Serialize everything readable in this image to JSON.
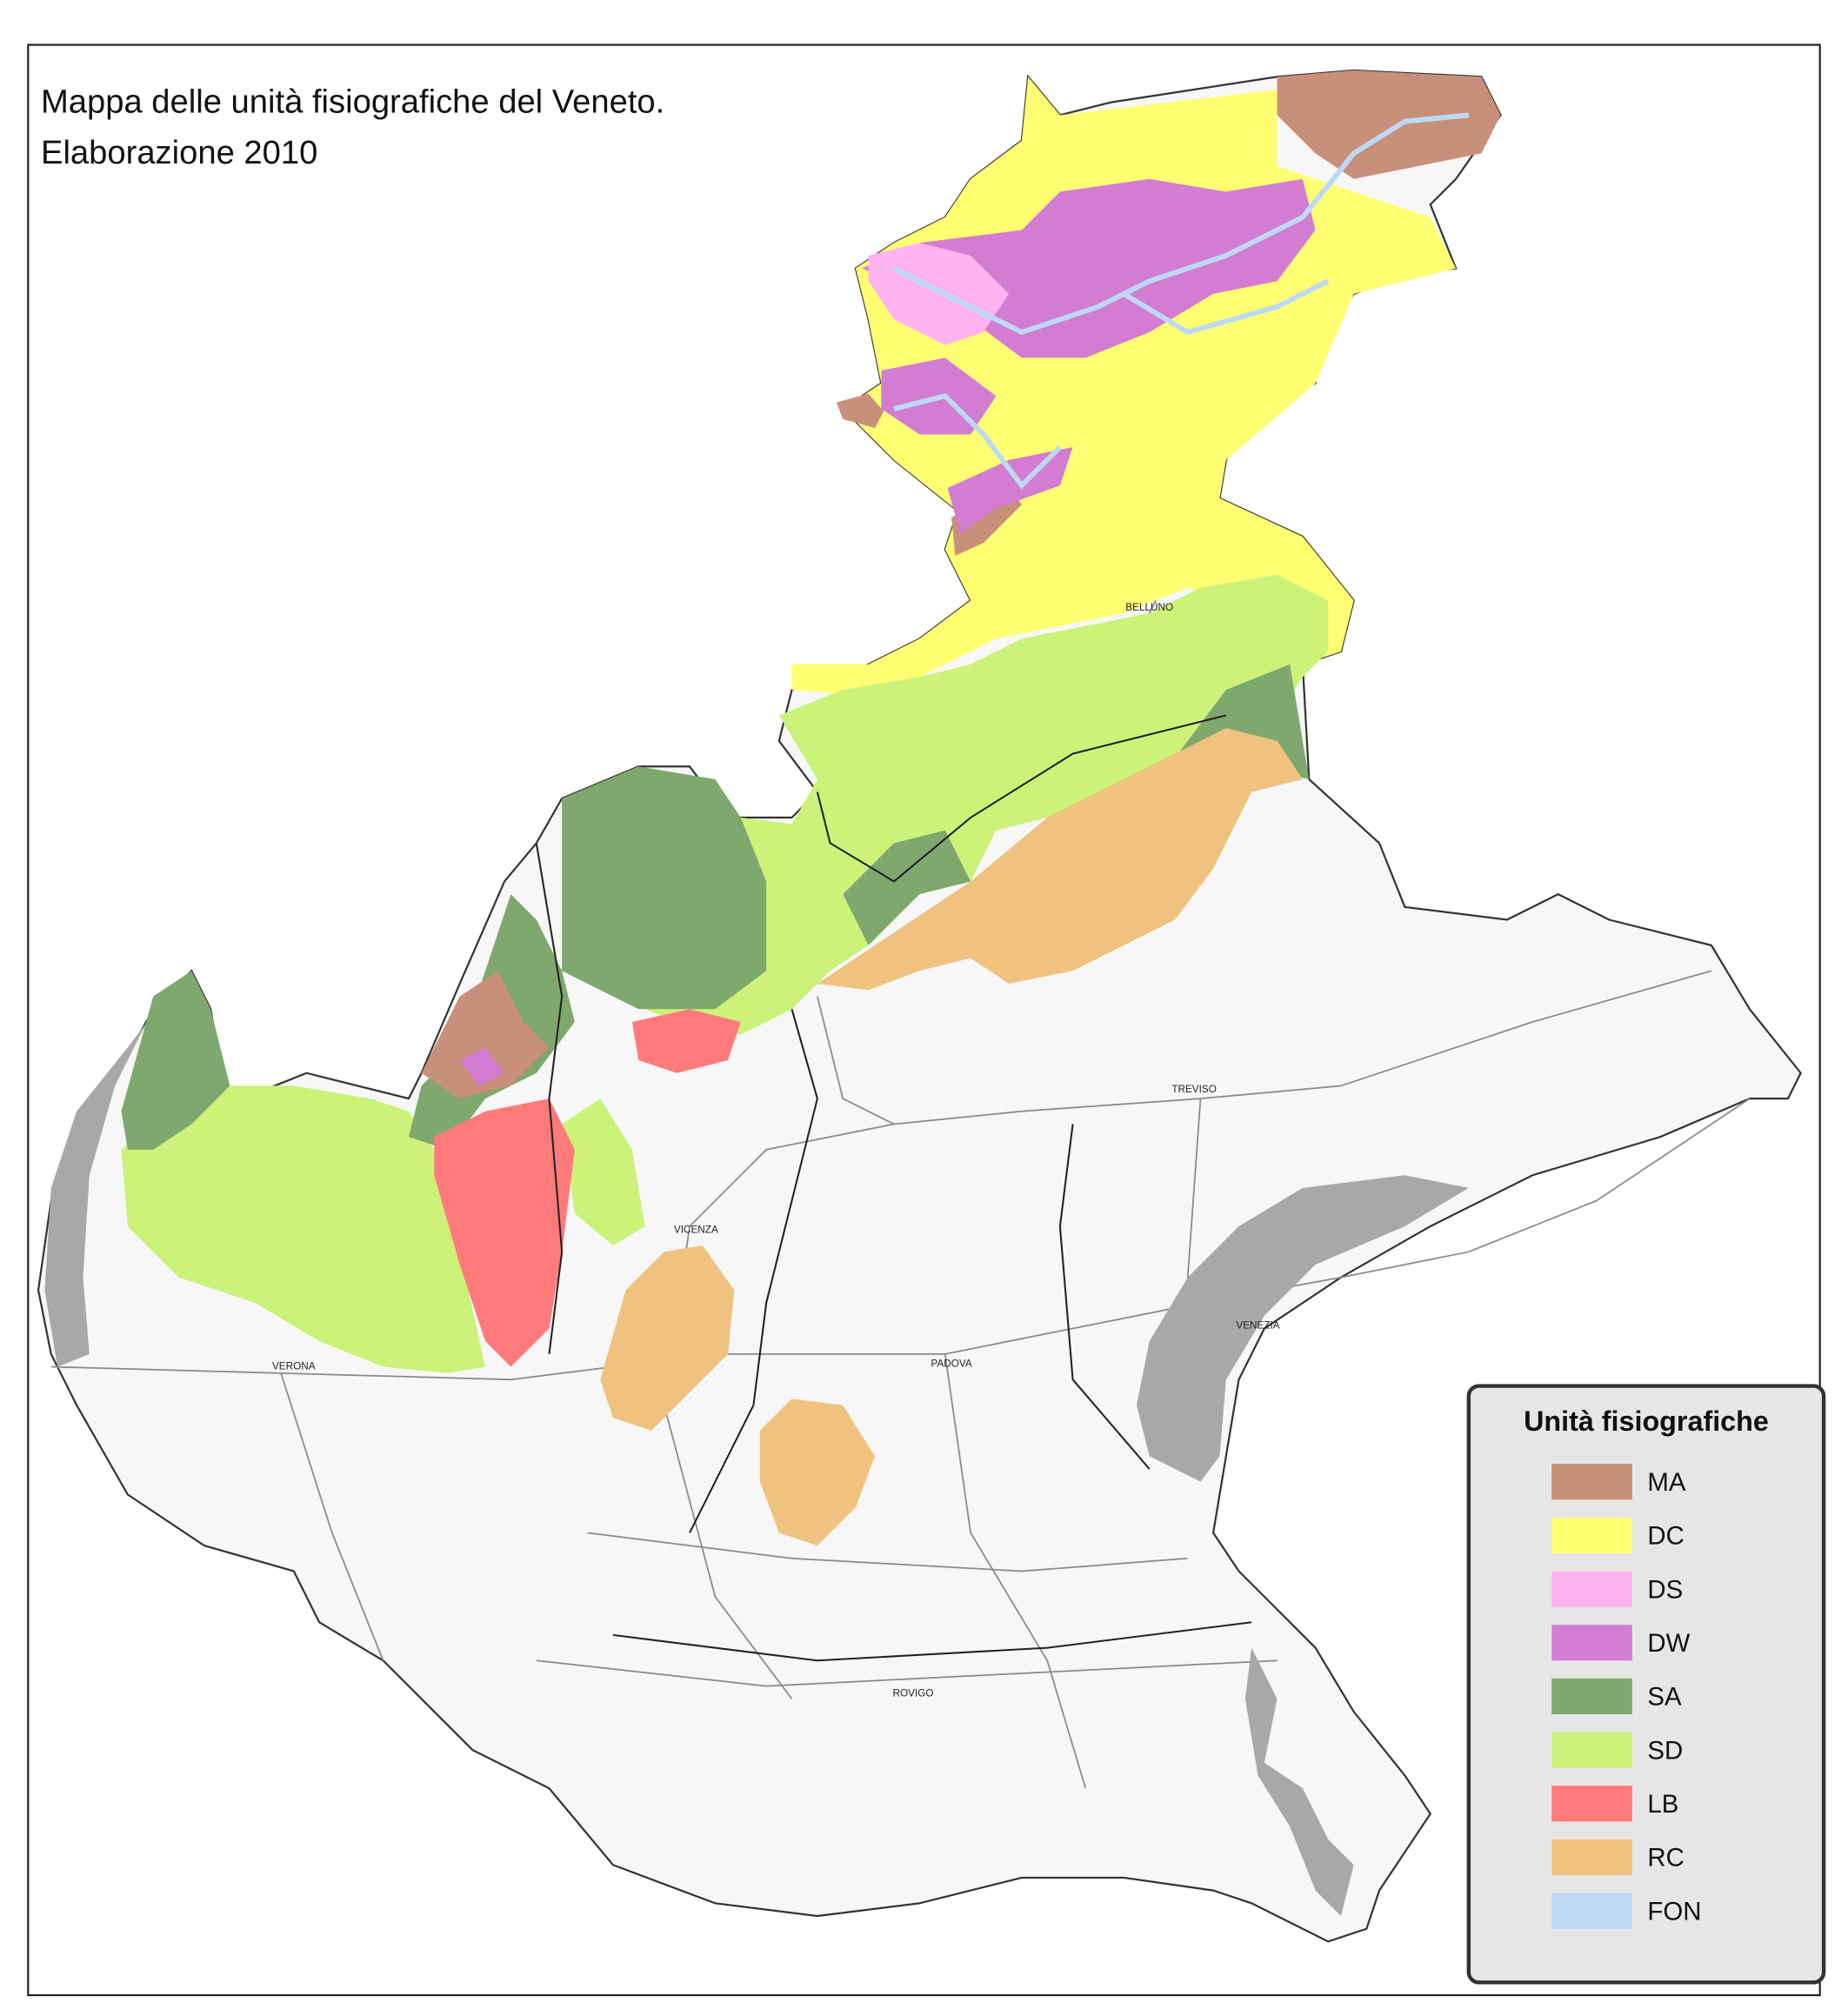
{
  "title": {
    "line1": "Mappa delle unità fisiografiche del Veneto.",
    "line2": "Elaborazione 2010"
  },
  "legend": {
    "title": "Unità fisiografiche",
    "items": [
      {
        "code": "MA",
        "color": "#c8907a"
      },
      {
        "code": "DC",
        "color": "#ffff73"
      },
      {
        "code": "DS",
        "color": "#ffb3f0"
      },
      {
        "code": "DW",
        "color": "#d27cd2"
      },
      {
        "code": "SA",
        "color": "#7fa86e"
      },
      {
        "code": "SD",
        "color": "#ccf27a"
      },
      {
        "code": "LB",
        "color": "#ff7a7a"
      },
      {
        "code": "RC",
        "color": "#f0c27f"
      },
      {
        "code": "FON",
        "color": "#bcd9f5"
      }
    ]
  },
  "cities": [
    "BELLUNO",
    "TREVISO",
    "VENEZIA",
    "PADOVA",
    "VICENZA",
    "VERONA",
    "ROVIGO"
  ]
}
